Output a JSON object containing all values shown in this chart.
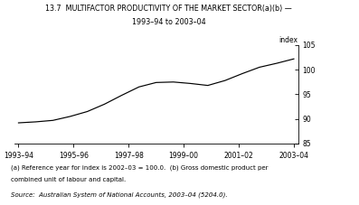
{
  "title_line1": "13.7  MULTIFACTOR PRODUCTIVITY OF THE MARKET SECTOR(a)(b) —",
  "title_line2": "1993–94 to 2003–04",
  "ylabel": "index",
  "x_labels": [
    "1993–94",
    "1995–96",
    "1997–98",
    "1999–00",
    "2001–02",
    "2003–04"
  ],
  "x_tick_pos": [
    0,
    2,
    4,
    6,
    8,
    10
  ],
  "y_values": [
    89.2,
    89.4,
    89.7,
    90.5,
    91.5,
    93.0,
    94.8,
    96.5,
    97.4,
    97.5,
    97.2,
    96.8,
    97.8,
    99.2,
    100.5,
    101.3,
    102.2
  ],
  "ylim": [
    85,
    105
  ],
  "yticks": [
    85,
    90,
    95,
    100,
    105
  ],
  "note1": "(a) Reference year for index is 2002–03 = 100.0.  (b) Gross domestic product per",
  "note2": "combined unit of labour and capital.",
  "source": "Source:  Australian System of National Accounts, 2003–04 (5204.0).",
  "line_color": "#000000",
  "bg_color": "#ffffff"
}
